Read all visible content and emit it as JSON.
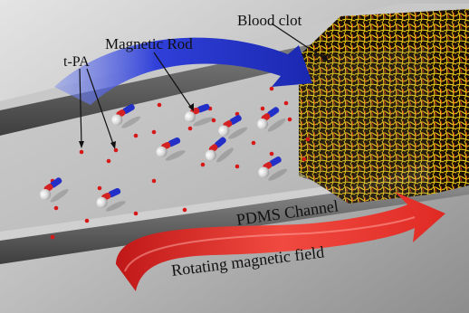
{
  "labels": {
    "blood_clot": "Blood clot",
    "magnetic_rod": "Magnetic Rod",
    "tpa": "t-PA",
    "channel": "PDMS Channel",
    "field": "Rotating magnetic field"
  },
  "colors": {
    "blue_arrow": "#2f3fd8",
    "red_arrow": "#e8322f",
    "rod_blue": "#2330c8",
    "rod_red": "#d42222",
    "tpa_dot": "#d81818",
    "clot_yellow": "#e8c818",
    "clot_dark": "#1a0f00"
  },
  "icons": [
    "blue-rotation-arrow",
    "red-rotation-arrow",
    "magnetic-rod",
    "tpa-particle",
    "blood-clot-block"
  ]
}
